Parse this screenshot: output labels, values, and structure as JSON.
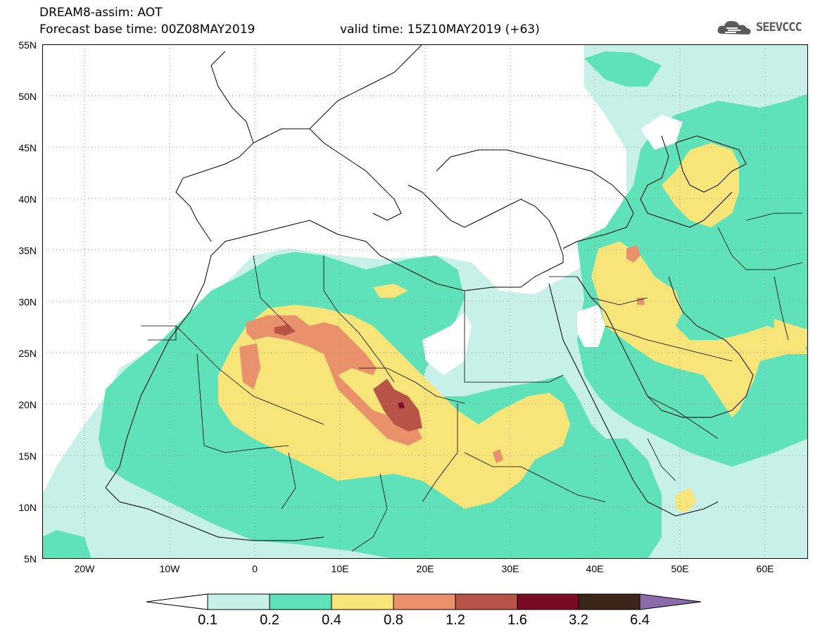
{
  "header": {
    "title_line1": "DREAM8-assim: AOT",
    "title_line2": "Forecast base time: 00Z08MAY2019",
    "valid_time": "valid time: 15Z10MAY2019 (+63)",
    "logo_text": "SEEVCCC",
    "logo_icon": "cloud-icon"
  },
  "map": {
    "projection": "lat-lon",
    "lon_range": [
      -25,
      65
    ],
    "lat_range": [
      5,
      55
    ],
    "lat_labels": [
      "55N",
      "50N",
      "45N",
      "40N",
      "35N",
      "30N",
      "25N",
      "20N",
      "15N",
      "10N",
      "5N"
    ],
    "lon_labels": [
      "20W",
      "10W",
      "0",
      "10E",
      "20E",
      "30E",
      "40E",
      "50E",
      "60E"
    ],
    "grid": "dotted"
  },
  "colorbar": {
    "labels": [
      "0.1",
      "0.2",
      "0.4",
      "0.8",
      "1.2",
      "1.6",
      "3.2",
      "6.4"
    ],
    "colors": [
      "#ffffff",
      "#c6f0e8",
      "#5fe1b9",
      "#f7e57a",
      "#e8916b",
      "#b85447",
      "#7b0a24",
      "#3b2418",
      "#8a6aaa"
    ]
  }
}
